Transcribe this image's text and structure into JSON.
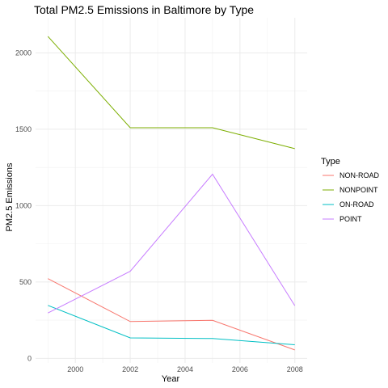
{
  "chart_data": {
    "type": "line",
    "title": "Total PM2.5 Emissions in Baltimore by Type",
    "xlabel": "Year",
    "ylabel": "PM2.5 Emissions",
    "x": [
      1999,
      2002,
      2005,
      2008
    ],
    "xlim": [
      1998.55,
      2008.45
    ],
    "ylim": [
      -30,
      2230
    ],
    "x_ticks": [
      2000,
      2002,
      2004,
      2006,
      2008
    ],
    "y_ticks": [
      0,
      500,
      1000,
      1500,
      2000
    ],
    "x_tick_labels": [
      "2000",
      "2002",
      "2004",
      "2006",
      "2008"
    ],
    "y_tick_labels": [
      "0",
      "500",
      "1000",
      "1500",
      "2000"
    ],
    "grid": true,
    "legend": {
      "title": "Type",
      "position": "right"
    },
    "series": [
      {
        "name": "NON-ROAD",
        "color": "#F8766D",
        "values": [
          522,
          241,
          249,
          55
        ]
      },
      {
        "name": "NONPOINT",
        "color": "#7CAE00",
        "values": [
          2108,
          1510,
          1510,
          1373
        ]
      },
      {
        "name": "ON-ROAD",
        "color": "#00BFC4",
        "values": [
          347,
          134,
          130,
          89
        ]
      },
      {
        "name": "POINT",
        "color": "#C77CFF",
        "values": [
          297,
          570,
          1206,
          345
        ]
      }
    ]
  }
}
